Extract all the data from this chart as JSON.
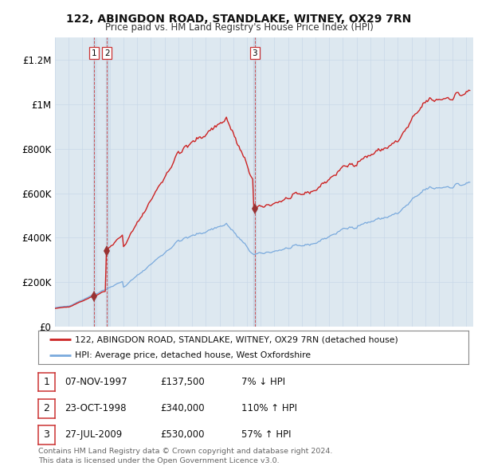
{
  "title": "122, ABINGDON ROAD, STANDLAKE, WITNEY, OX29 7RN",
  "subtitle": "Price paid vs. HM Land Registry's House Price Index (HPI)",
  "sale_dates": [
    "1997-11-07",
    "1998-10-23",
    "2009-07-27"
  ],
  "sale_prices": [
    137500,
    340000,
    530000
  ],
  "sale_years": [
    1997.84,
    1998.8,
    2009.56
  ],
  "sale_labels": [
    "1",
    "2",
    "3"
  ],
  "sale_info": [
    {
      "num": "1",
      "date": "07-NOV-1997",
      "price": "£137,500",
      "change": "7% ↓ HPI"
    },
    {
      "num": "2",
      "date": "23-OCT-1998",
      "price": "£340,000",
      "change": "110% ↑ HPI"
    },
    {
      "num": "3",
      "date": "27-JUL-2009",
      "price": "£530,000",
      "change": "57% ↑ HPI"
    }
  ],
  "legend_line1": "122, ABINGDON ROAD, STANDLAKE, WITNEY, OX29 7RN (detached house)",
  "legend_line2": "HPI: Average price, detached house, West Oxfordshire",
  "footer": "Contains HM Land Registry data © Crown copyright and database right 2024.\nThis data is licensed under the Open Government Licence v3.0.",
  "hpi_color": "#7aaadd",
  "property_color": "#cc2222",
  "sale_dot_color": "#993333",
  "vline_color": "#cc3333",
  "bg_chart": "#dde8f0",
  "ylim": [
    0,
    1300000
  ],
  "yticks": [
    0,
    200000,
    400000,
    600000,
    800000,
    1000000,
    1200000
  ],
  "ytick_labels": [
    "£0",
    "£200K",
    "£400K",
    "£600K",
    "£800K",
    "£1M",
    "£1.2M"
  ],
  "background_color": "#ffffff",
  "grid_color": "#c8d8e8"
}
